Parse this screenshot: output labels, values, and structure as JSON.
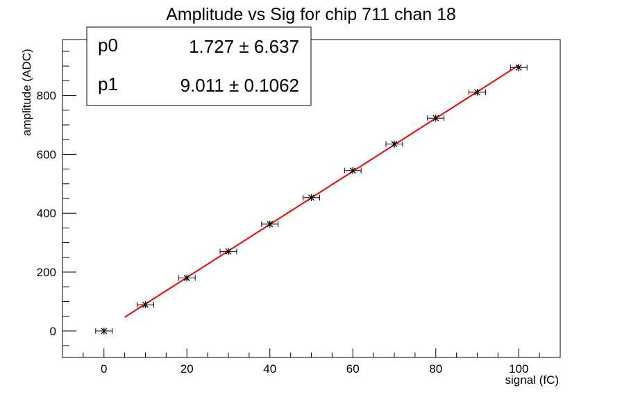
{
  "chart_data": {
    "type": "scatter",
    "title": "Amplitude vs Sig for chip 711 chan 18",
    "xlabel": "signal (fC)",
    "ylabel": "amplitude (ADC)",
    "xlim": [
      -10,
      110
    ],
    "ylim": [
      -90,
      990
    ],
    "x_ticks": [
      0,
      20,
      40,
      60,
      80,
      100
    ],
    "y_ticks": [
      0,
      200,
      400,
      600,
      800
    ],
    "grid": false,
    "points": {
      "x": [
        0,
        10,
        20,
        30,
        40,
        50,
        60,
        70,
        80,
        90,
        100
      ],
      "y": [
        0,
        89,
        180,
        270,
        363,
        453,
        545,
        635,
        723,
        811,
        895
      ],
      "x_err": 2
    },
    "fit": {
      "function": "linear",
      "x_range": [
        5,
        100
      ],
      "p0": 1.727,
      "p1": 9.011,
      "color": "#ff0000"
    },
    "stats_box": {
      "position": "top-left",
      "rows": [
        {
          "name": "p0",
          "value": "1.727",
          "error": "6.637"
        },
        {
          "name": "p1",
          "value": "9.011",
          "error": "0.1062"
        }
      ],
      "pm_symbol": "±"
    }
  }
}
